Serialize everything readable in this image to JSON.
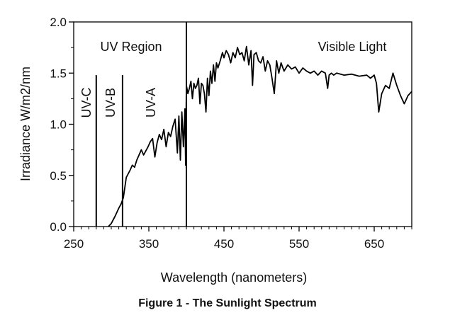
{
  "caption": "Figure 1 - The Sunlight Spectrum",
  "chart_data": {
    "type": "line",
    "title": "",
    "xlabel": "Wavelength (nanometers)",
    "ylabel": "Irradiance  W/m2/nm",
    "xlim": [
      250,
      700
    ],
    "ylim": [
      0.0,
      2.0
    ],
    "x_ticks": [
      250,
      350,
      450,
      550,
      650
    ],
    "x_tick_labels": [
      "250",
      "350",
      "450",
      "550",
      "650"
    ],
    "y_ticks": [
      0.0,
      0.5,
      1.0,
      1.5,
      2.0
    ],
    "y_tick_labels": [
      "0.0",
      "0.5",
      "1.0",
      "1.5",
      "2.0"
    ],
    "grid": false,
    "line_color": "#000000",
    "regions": [
      {
        "label": "UV-C",
        "boundary_x": 280
      },
      {
        "label": "UV-B",
        "boundary_x": 315
      },
      {
        "label": "UV-A",
        "boundary_x": 400
      }
    ],
    "region_labels": {
      "uv_region": "UV Region",
      "visible": "Visible Light"
    },
    "series": [
      {
        "x": [
          296,
          300,
          305,
          310,
          313,
          316,
          320,
          325,
          328,
          331,
          334,
          337,
          340,
          343,
          346,
          349,
          352,
          355,
          358,
          361,
          364,
          367,
          370,
          373,
          376,
          379,
          382,
          385,
          388,
          390,
          392,
          394,
          396,
          398,
          399,
          400,
          402,
          404,
          406,
          408,
          410,
          412,
          414,
          416,
          418,
          420,
          422,
          424,
          426,
          428,
          430,
          432,
          434,
          436,
          438,
          440,
          442,
          445,
          448,
          450,
          453,
          456,
          459,
          462,
          465,
          468,
          471,
          474,
          477,
          480,
          483,
          486,
          488,
          490,
          493,
          496,
          499,
          502,
          505,
          508,
          511,
          514,
          517,
          520,
          523,
          526,
          530,
          535,
          540,
          545,
          550,
          555,
          560,
          565,
          570,
          575,
          580,
          585,
          588,
          590,
          593,
          596,
          600,
          610,
          620,
          630,
          640,
          645,
          650,
          653,
          656,
          660,
          665,
          670,
          675,
          680,
          685,
          690,
          695,
          700
        ],
        "y": [
          0.0,
          0.03,
          0.1,
          0.18,
          0.22,
          0.28,
          0.48,
          0.55,
          0.6,
          0.58,
          0.65,
          0.7,
          0.75,
          0.7,
          0.74,
          0.78,
          0.83,
          0.86,
          0.68,
          0.82,
          0.9,
          0.85,
          0.95,
          0.78,
          0.92,
          0.88,
          0.98,
          1.05,
          0.72,
          1.08,
          0.65,
          1.12,
          0.78,
          1.15,
          0.6,
          1.38,
          1.3,
          1.35,
          1.42,
          1.25,
          1.4,
          1.35,
          1.38,
          1.45,
          1.2,
          1.4,
          1.38,
          1.3,
          1.12,
          1.45,
          1.28,
          1.52,
          1.4,
          1.58,
          1.42,
          1.6,
          1.55,
          1.62,
          1.7,
          1.65,
          1.72,
          1.68,
          1.6,
          1.7,
          1.65,
          1.75,
          1.68,
          1.7,
          1.62,
          1.76,
          1.58,
          1.72,
          1.38,
          1.68,
          1.7,
          1.62,
          1.6,
          1.66,
          1.52,
          1.62,
          1.58,
          1.45,
          1.3,
          1.62,
          1.5,
          1.6,
          1.52,
          1.58,
          1.54,
          1.56,
          1.5,
          1.55,
          1.52,
          1.5,
          1.52,
          1.48,
          1.52,
          1.5,
          1.35,
          1.48,
          1.5,
          1.48,
          1.5,
          1.48,
          1.49,
          1.47,
          1.48,
          1.45,
          1.48,
          1.4,
          1.12,
          1.3,
          1.38,
          1.35,
          1.5,
          1.38,
          1.28,
          1.2,
          1.28,
          1.32
        ]
      }
    ]
  }
}
